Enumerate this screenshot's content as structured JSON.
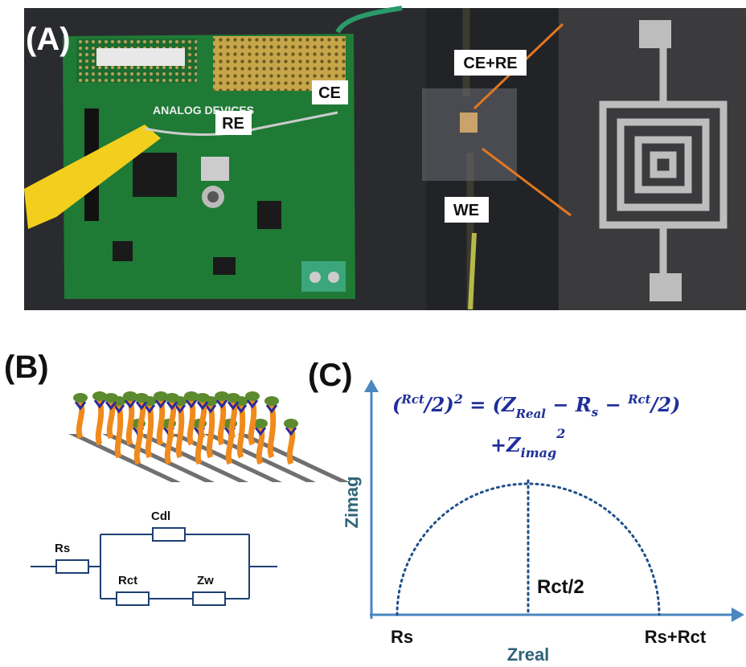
{
  "panel_a": {
    "label": "(A)",
    "board_brand": "ANALOG DEVICES",
    "electrodes": [
      "CE",
      "RE",
      "CE+RE",
      "WE"
    ]
  },
  "panel_b": {
    "label": "(B)",
    "circuit": [
      "Rs",
      "Cdl",
      "Rct",
      "Zw"
    ]
  },
  "panel_c": {
    "label": "(C)",
    "equation_line1": [
      "(",
      "Rct",
      "/2)",
      "2",
      " = (",
      "Z",
      "Real",
      " − R",
      "s",
      " − ",
      "Rct",
      "/2)"
    ],
    "equation_line2": [
      "+Z",
      "imag",
      "2"
    ],
    "y_axis": "Zimag",
    "x_axis": "Zreal",
    "x_labels": [
      "Rs",
      "Rs+Rct"
    ],
    "midline_label": "Rct/2"
  }
}
